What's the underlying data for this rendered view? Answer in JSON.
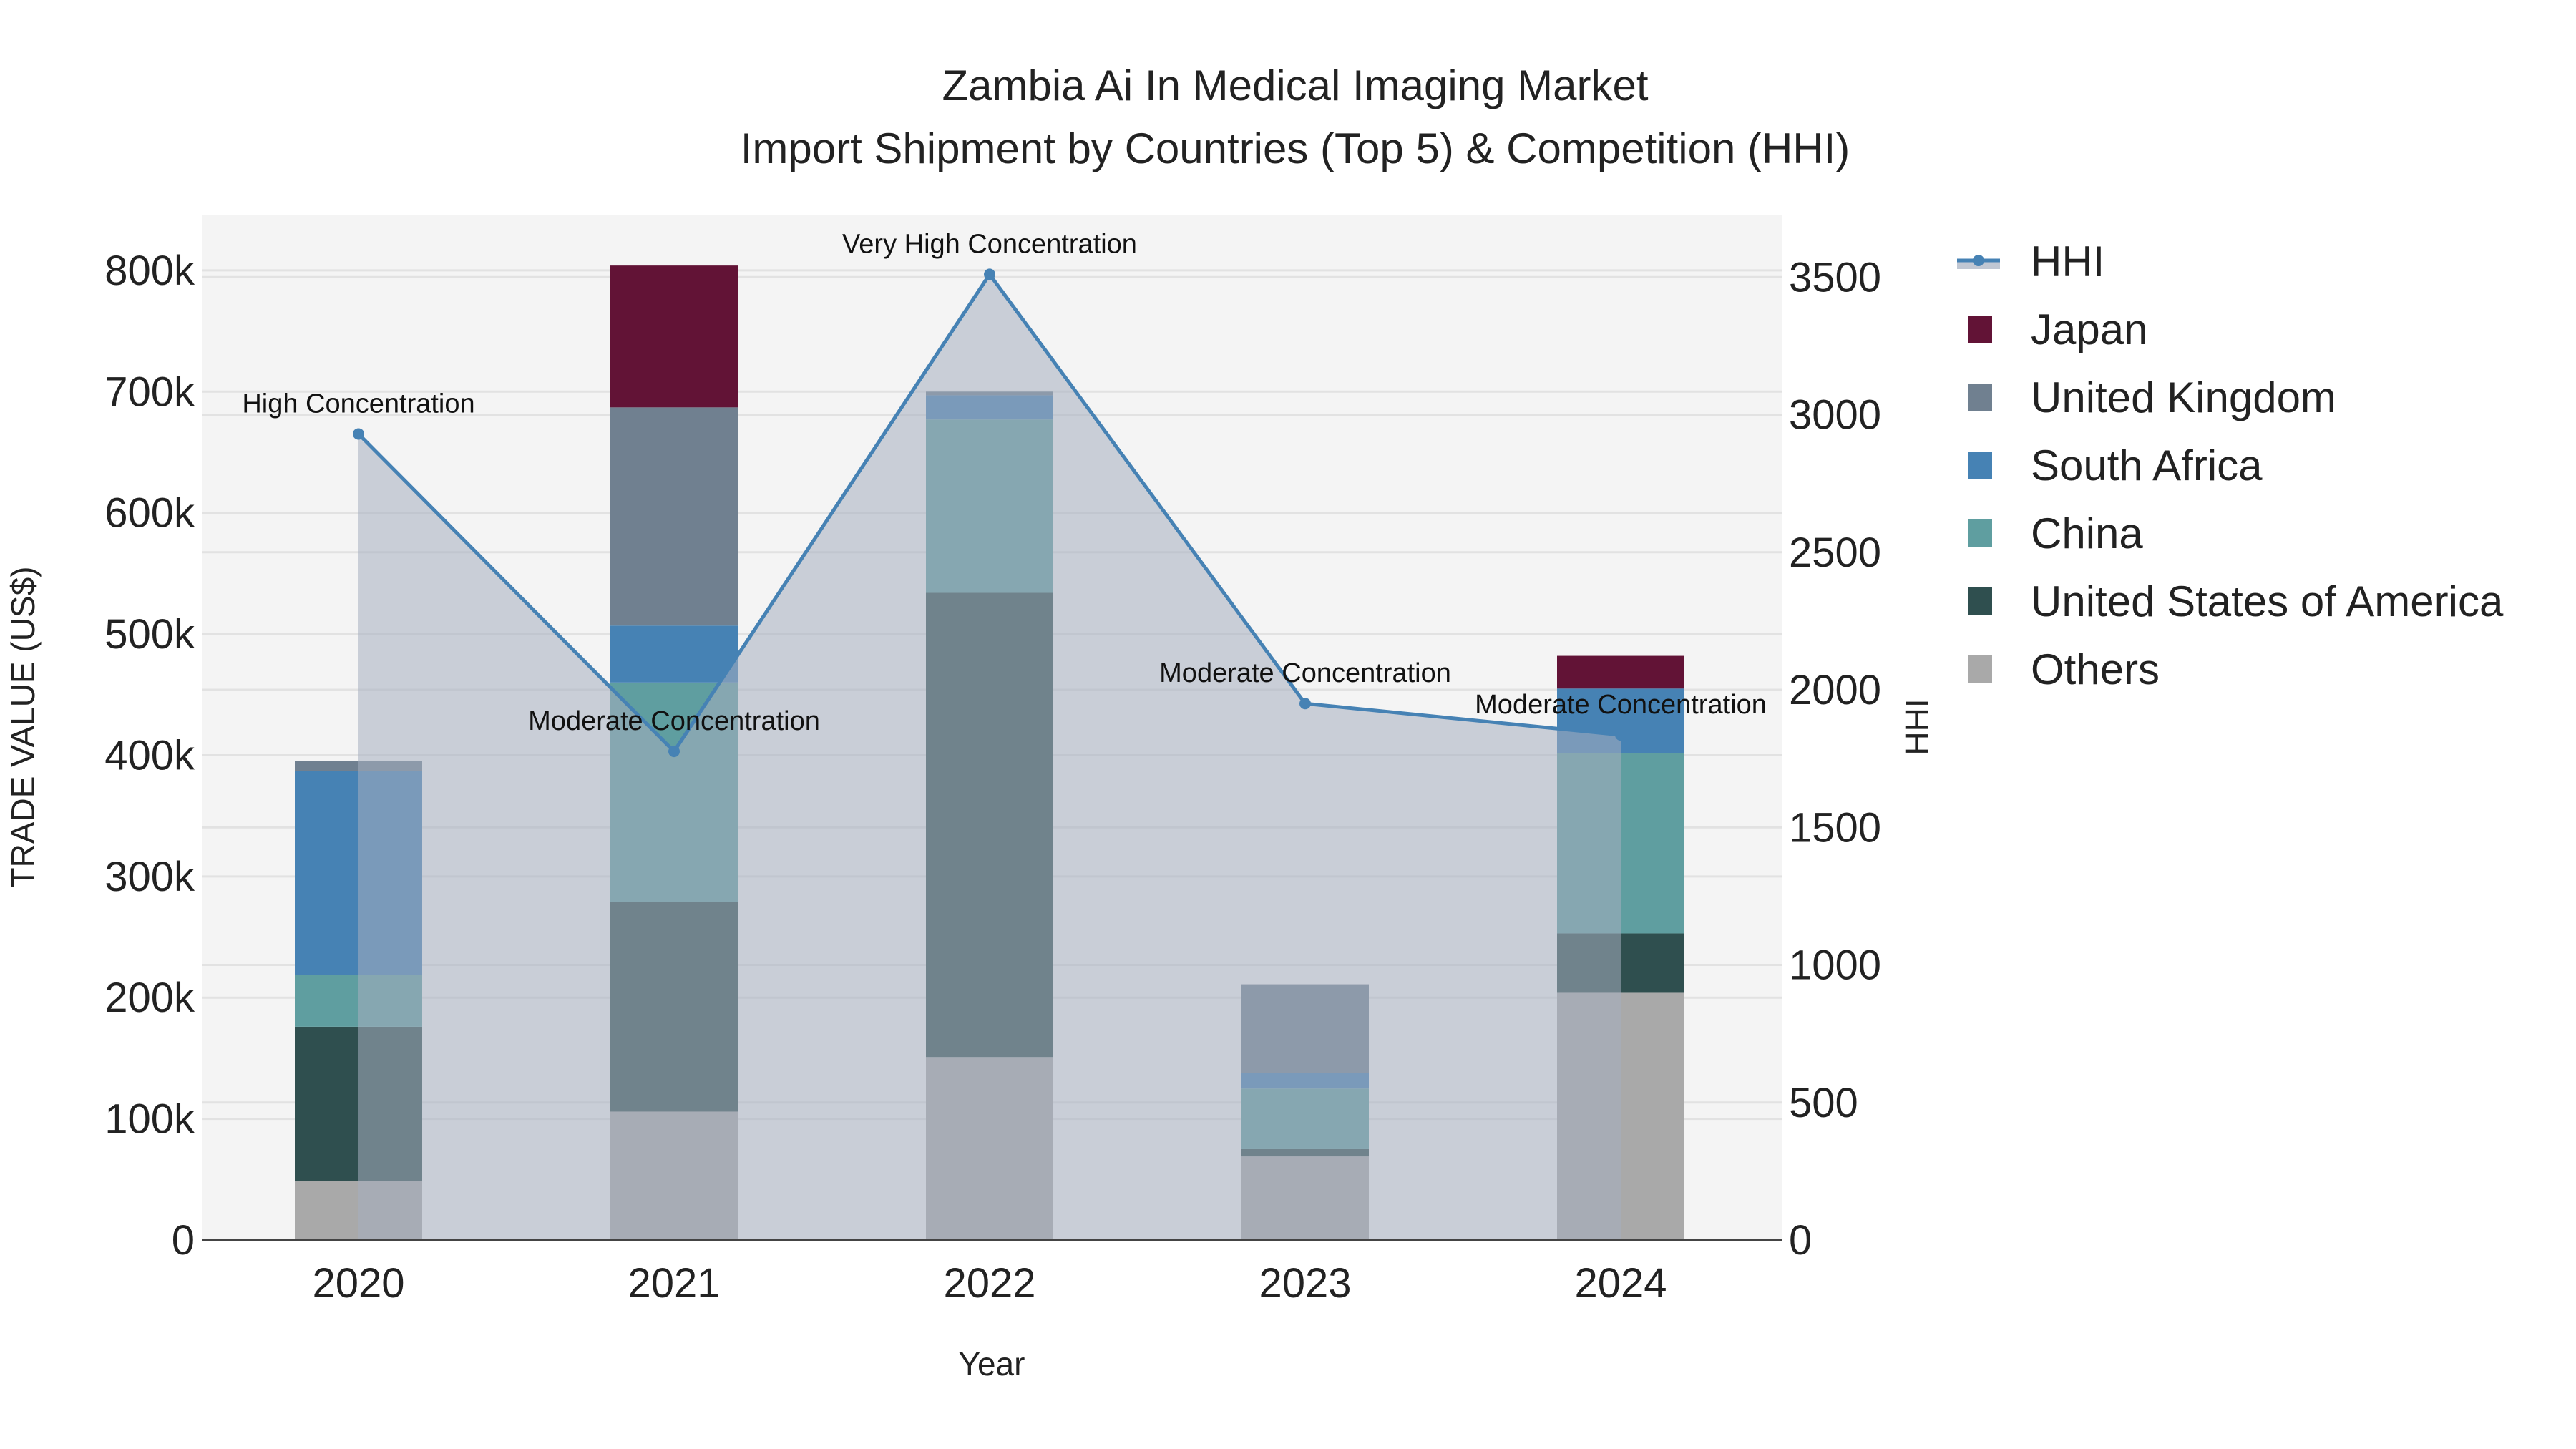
{
  "chart_data": {
    "type": "bar",
    "title": "Zambia Ai In Medical Imaging Market",
    "subtitle": "Import Shipment by Countries (Top 5) & Competition (HHI)",
    "xlabel": "Year",
    "ylabel": "TRADE VALUE (US$)",
    "y2label": "HHI",
    "categories": [
      "2020",
      "2021",
      "2022",
      "2023",
      "2024"
    ],
    "ylim": [
      0,
      846000
    ],
    "y2lim": [
      0,
      3727
    ],
    "yticks": [
      0,
      100000,
      200000,
      300000,
      400000,
      500000,
      600000,
      700000,
      800000
    ],
    "ytick_labels": [
      "0",
      "100k",
      "200k",
      "300k",
      "400k",
      "500k",
      "600k",
      "700k",
      "800k"
    ],
    "y2ticks": [
      0,
      500,
      1000,
      1500,
      2000,
      2500,
      3000,
      3500
    ],
    "y2tick_labels": [
      "0",
      "500",
      "1000",
      "1500",
      "2000",
      "2500",
      "3000",
      "3500"
    ],
    "series": [
      {
        "name": "Others",
        "color": "#a9a9a9",
        "values": [
          49000,
          106000,
          151000,
          69000,
          204000
        ]
      },
      {
        "name": "United States of America",
        "color": "#2f4f4f",
        "values": [
          127000,
          173000,
          383000,
          6000,
          49000
        ]
      },
      {
        "name": "China",
        "color": "#5f9ea0",
        "values": [
          43000,
          181000,
          143000,
          50000,
          149000
        ]
      },
      {
        "name": "South Africa",
        "color": "#4682b4",
        "values": [
          168000,
          47000,
          20000,
          13000,
          53000
        ]
      },
      {
        "name": "United Kingdom",
        "color": "#708090",
        "values": [
          8000,
          180000,
          3000,
          73000,
          0
        ]
      },
      {
        "name": "Japan",
        "color": "#621336",
        "values": [
          0,
          117000,
          0,
          0,
          27000
        ]
      }
    ],
    "hhi": {
      "name": "HHI",
      "color": "#4682b4",
      "values": [
        2930,
        1776,
        3510,
        1950,
        1836
      ],
      "annotations": [
        "High Concentration",
        "Moderate Concentration",
        "Very High Concentration",
        "Moderate Concentration",
        "Moderate Concentration"
      ]
    },
    "legend": {
      "position": "right",
      "order": [
        "HHI",
        "Japan",
        "United Kingdom",
        "South Africa",
        "China",
        "United States of America",
        "Others"
      ]
    }
  }
}
